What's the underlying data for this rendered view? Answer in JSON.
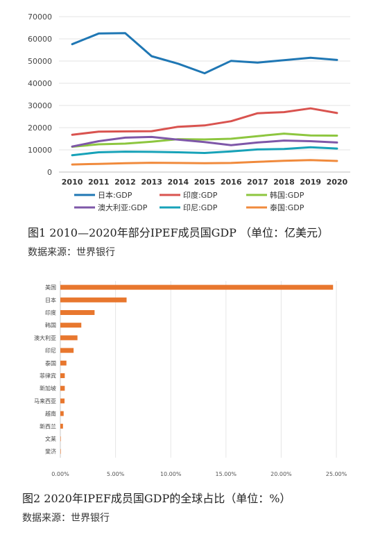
{
  "chart_data": [
    {
      "type": "line",
      "x": [
        "2010",
        "2011",
        "2012",
        "2013",
        "2014",
        "2015",
        "2016",
        "2017",
        "2018",
        "2019",
        "2020"
      ],
      "ylim": [
        0,
        70000
      ],
      "yticks": [
        "0",
        "10000",
        "20000",
        "30000",
        "40000",
        "50000",
        "60000",
        "70000"
      ],
      "grid": "horizontal",
      "legend": "bottom",
      "series": [
        {
          "name": "日本:GDP",
          "color": "#1f77b4",
          "values": [
            57600,
            62400,
            62600,
            52200,
            48800,
            44500,
            50100,
            49300,
            50400,
            51500,
            50500
          ]
        },
        {
          "name": "印度:GDP",
          "color": "#d9534f",
          "values": [
            16800,
            18200,
            18300,
            18400,
            20400,
            21000,
            22900,
            26500,
            27000,
            28700,
            26600
          ]
        },
        {
          "name": "韩国:GDP",
          "color": "#8dc63f",
          "values": [
            11400,
            12500,
            12800,
            13700,
            14800,
            14700,
            15000,
            16200,
            17300,
            16500,
            16400
          ]
        },
        {
          "name": "澳大利亚:GDP",
          "color": "#7e57a8",
          "values": [
            11500,
            13900,
            15500,
            15800,
            14600,
            13500,
            12100,
            13300,
            14200,
            13900,
            13300
          ]
        },
        {
          "name": "印尼:GDP",
          "color": "#17a2b8",
          "values": [
            7600,
            8900,
            9200,
            9100,
            8900,
            8600,
            9300,
            10200,
            10400,
            11200,
            10600
          ]
        },
        {
          "name": "泰国:GDP",
          "color": "#f08a3c",
          "values": [
            3400,
            3700,
            4000,
            4200,
            4100,
            4000,
            4100,
            4600,
            5100,
            5400,
            5000
          ]
        }
      ]
    },
    {
      "type": "bar",
      "orientation": "horizontal",
      "categories": [
        "美国",
        "日本",
        "印度",
        "韩国",
        "澳大利亚",
        "印尼",
        "泰国",
        "菲律宾",
        "新加坡",
        "马来西亚",
        "越南",
        "新西兰",
        "文莱",
        "斐济"
      ],
      "values": [
        24.7,
        6.0,
        3.1,
        1.9,
        1.55,
        1.2,
        0.55,
        0.4,
        0.4,
        0.38,
        0.3,
        0.24,
        0.02,
        0.005
      ],
      "xlim": [
        0,
        25
      ],
      "xticks": [
        "0.00%",
        "5.00%",
        "10.00%",
        "15.00%",
        "20.00%",
        "25.00%"
      ],
      "bar_color": "#e8772e",
      "grid": "vertical"
    }
  ],
  "captions": {
    "fig1": "图1 2010—2020年部分IPEF成员国GDP （单位：亿美元）",
    "fig1_source": "数据来源：世界银行",
    "fig2": "图2 2020年IPEF成员国GDP的全球占比（单位：%）",
    "fig2_source": "数据来源：世界银行"
  }
}
